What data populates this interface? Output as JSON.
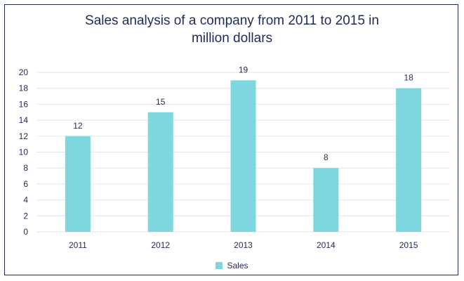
{
  "chart_data": {
    "type": "bar",
    "title_lines": [
      "Sales analysis of a company from 2011 to 2015 in",
      "million dollars"
    ],
    "categories": [
      "2011",
      "2012",
      "2013",
      "2014",
      "2015"
    ],
    "series": [
      {
        "name": "Sales",
        "values": [
          12,
          15,
          19,
          8,
          18
        ],
        "color": "#7ed6df"
      }
    ],
    "ylim": [
      0,
      20
    ],
    "yticks": [
      0,
      2,
      4,
      6,
      8,
      10,
      12,
      14,
      16,
      18,
      20
    ],
    "grid": true,
    "legend": "bottom",
    "colors": {
      "text": "#1f2a5a",
      "grid": "#e6e6e6",
      "frame": "#1f2a5a"
    }
  }
}
